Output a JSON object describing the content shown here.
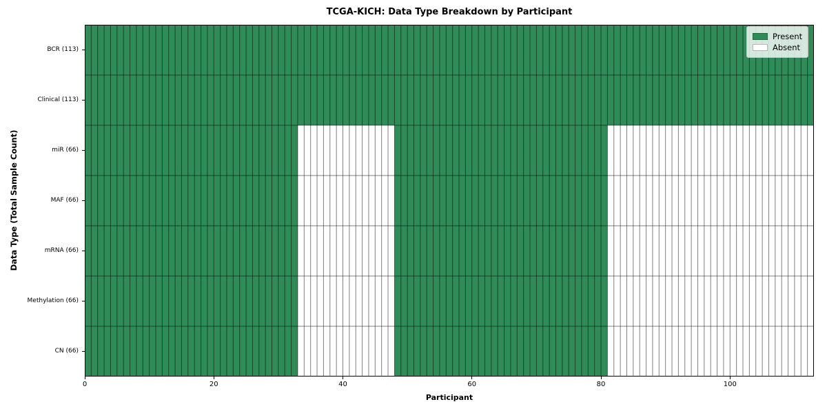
{
  "chart_data": {
    "type": "heatmap",
    "title": "TCGA-KICH: Data Type Breakdown by Participant",
    "xlabel": "Participant",
    "ylabel": "Data Type (Total Sample Count)",
    "x_range": [
      0,
      113
    ],
    "x_ticks": [
      0,
      20,
      40,
      60,
      80,
      100
    ],
    "grid": false,
    "legend_position": "upper right",
    "colors": {
      "present": "#2f8b57",
      "absent": "#ffffff",
      "cell_line": "rgba(0,0,0,0.5)",
      "frame": "#000000",
      "legend_border": "#c8c8c8"
    },
    "legend": [
      {
        "name": "present",
        "label": "Present",
        "color": "#2f8b57"
      },
      {
        "name": "absent",
        "label": "Absent",
        "color": "#ffffff"
      }
    ],
    "rows": [
      {
        "label": "BCR (113)",
        "present_count": 113,
        "present_ranges": [
          [
            0,
            113
          ]
        ]
      },
      {
        "label": "Clinical (113)",
        "present_count": 113,
        "present_ranges": [
          [
            0,
            113
          ]
        ]
      },
      {
        "label": "miR (66)",
        "present_count": 66,
        "present_ranges": [
          [
            0,
            33
          ],
          [
            48,
            81
          ]
        ]
      },
      {
        "label": "MAF (66)",
        "present_count": 66,
        "present_ranges": [
          [
            0,
            33
          ],
          [
            48,
            81
          ]
        ]
      },
      {
        "label": "mRNA (66)",
        "present_count": 66,
        "present_ranges": [
          [
            0,
            33
          ],
          [
            48,
            81
          ]
        ]
      },
      {
        "label": "Methylation (66)",
        "present_count": 66,
        "present_ranges": [
          [
            0,
            33
          ],
          [
            48,
            81
          ]
        ]
      },
      {
        "label": "CN (66)",
        "present_count": 66,
        "present_ranges": [
          [
            0,
            33
          ],
          [
            48,
            81
          ]
        ]
      }
    ]
  }
}
